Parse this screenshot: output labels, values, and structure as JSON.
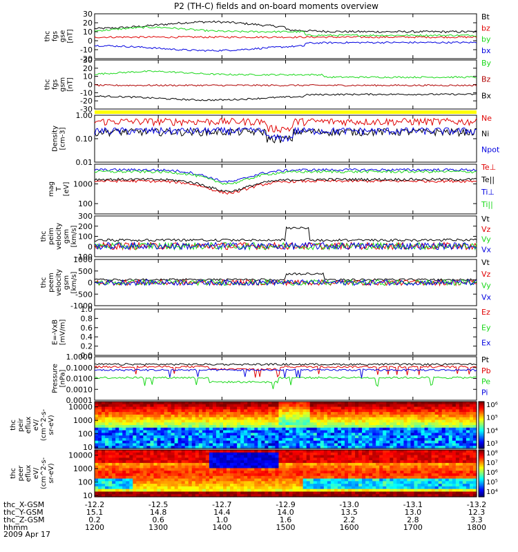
{
  "title": "P2 (TH-C) fields and on-board moments overview",
  "colors": {
    "black": "#000000",
    "red": "#e00000",
    "green": "#18d818",
    "blue": "#0000e0",
    "darkred": "#b00000",
    "yellow": "#ffff00"
  },
  "chart_data": {
    "type": "line",
    "xaxis": {
      "rows": [
        {
          "label": "thc_X-GSM",
          "ticks": [
            "-12.2",
            "-12.5",
            "-12.7",
            "-12.9",
            "-13.0",
            "-13.1",
            "-13.2"
          ]
        },
        {
          "label": "thc_Y-GSM",
          "ticks": [
            "15.1",
            "14.8",
            "14.4",
            "14.0",
            "13.5",
            "13.0",
            "12.3"
          ]
        },
        {
          "label": "thc_Z-GSM",
          "ticks": [
            "0.2",
            "0.6",
            "1.0",
            "1.6",
            "2.2",
            "2.8",
            "3.3"
          ]
        },
        {
          "label": "hhmm",
          "ticks": [
            "1200",
            "1300",
            "1400",
            "1500",
            "1600",
            "1700",
            "1800"
          ]
        }
      ],
      "date": "2009 Apr 17",
      "xlim": [
        1200,
        1800
      ]
    },
    "panels": [
      {
        "id": "fgs-gse",
        "ylabel": [
          "thc",
          "fgs",
          "gse",
          "[nT]"
        ],
        "ylim": [
          -20,
          30
        ],
        "yscale": "linear",
        "yticks": [
          "-20",
          "-10",
          "0",
          "10",
          "20",
          "30"
        ],
        "series": [
          {
            "name": "Bt",
            "color": "black",
            "base": 13
          },
          {
            "name": "bz",
            "color": "red",
            "base": 4
          },
          {
            "name": "by",
            "color": "green",
            "base": 10
          },
          {
            "name": "bx",
            "color": "blue",
            "base": -5
          }
        ]
      },
      {
        "id": "fgs-gsm",
        "ylabel": [
          "thc",
          "fgs",
          "gsm",
          "[nT]"
        ],
        "ylim": [
          -30,
          30
        ],
        "yscale": "linear",
        "yticks": [
          "-30",
          "-20",
          "-10",
          "0",
          "10",
          "20",
          "30"
        ],
        "series": [
          {
            "name": "By",
            "color": "green",
            "base": 12
          },
          {
            "name": "Bz",
            "color": "darkred",
            "base": -1
          },
          {
            "name": "Bx",
            "color": "black",
            "base": -14
          }
        ]
      },
      {
        "id": "density",
        "ylabel": [
          "Density",
          "[cm-3]"
        ],
        "ylim": [
          0.01,
          1.0
        ],
        "yscale": "log",
        "yticks": [
          "0.01",
          "0.10",
          "1.00"
        ],
        "series": [
          {
            "name": "Ne",
            "color": "red",
            "base": 0.55
          },
          {
            "name": "Ni",
            "color": "black",
            "base": 0.2
          },
          {
            "name": "Npot",
            "color": "blue",
            "base": 0.22
          }
        ]
      },
      {
        "id": "temperature",
        "ylabel": [
          "mag",
          "T",
          "[eV]"
        ],
        "ylim": [
          30,
          10000
        ],
        "yscale": "log",
        "yticks": [
          "100",
          "1000"
        ],
        "series": [
          {
            "name": "Te⊥",
            "color": "red",
            "base": 1400
          },
          {
            "name": "Te||",
            "color": "black",
            "base": 1700
          },
          {
            "name": "Ti⊥",
            "color": "blue",
            "base": 5200
          },
          {
            "name": "Ti||",
            "color": "green",
            "base": 4200
          }
        ]
      },
      {
        "id": "peim-velocity",
        "ylabel": [
          "thc",
          "peim",
          "velocity",
          "gsm",
          "[km/s]"
        ],
        "ylim": [
          -100,
          300
        ],
        "yscale": "linear",
        "yticks": [
          "-100",
          "0",
          "100",
          "200",
          "300"
        ],
        "series": [
          {
            "name": "Vt",
            "color": "black",
            "base": 50
          },
          {
            "name": "Vz",
            "color": "red",
            "base": 5
          },
          {
            "name": "Vy",
            "color": "green",
            "base": 5
          },
          {
            "name": "Vx",
            "color": "blue",
            "base": 5
          }
        ]
      },
      {
        "id": "peem-velocity",
        "ylabel": [
          "thc",
          "peem",
          "velocity",
          "gsm",
          "[km/s]"
        ],
        "ylim": [
          -1000,
          1000
        ],
        "yscale": "linear",
        "yticks": [
          "-1000",
          "-500",
          "0",
          "500",
          "1000"
        ],
        "series": [
          {
            "name": "Vt",
            "color": "black",
            "base": 80
          },
          {
            "name": "Vz",
            "color": "red",
            "base": 0
          },
          {
            "name": "Vy",
            "color": "green",
            "base": 0
          },
          {
            "name": "Vx",
            "color": "blue",
            "base": 0
          }
        ]
      },
      {
        "id": "efield",
        "ylabel": [
          "E=-VxB",
          "[mV/m]"
        ],
        "ylim": [
          0,
          1.0
        ],
        "yscale": "linear",
        "yticks": [
          "0.0",
          "0.2",
          "0.4",
          "0.6",
          "0.8",
          "1.0"
        ],
        "series": [
          {
            "name": "Ez",
            "color": "red",
            "base": null
          },
          {
            "name": "Ey",
            "color": "green",
            "base": null
          },
          {
            "name": "Ex",
            "color": "blue",
            "base": null
          }
        ]
      },
      {
        "id": "pressure",
        "ylabel": [
          "Pressure",
          "[nPa]"
        ],
        "ylim": [
          0.0001,
          1.0
        ],
        "yscale": "log",
        "yticks": [
          "0.0001",
          "0.0010",
          "0.0100",
          "0.1000",
          "1.0000"
        ],
        "series": [
          {
            "name": "Pt",
            "color": "black",
            "base": 0.2
          },
          {
            "name": "Pb",
            "color": "red",
            "base": 0.12
          },
          {
            "name": "Pe",
            "color": "green",
            "base": 0.012
          },
          {
            "name": "Pi",
            "color": "blue",
            "base": 0.06
          }
        ]
      }
    ],
    "spectrograms": [
      {
        "id": "peir-eflux",
        "ylabel": [
          "thc",
          "peir",
          "eflux",
          "eV/",
          "(cm^2-s-",
          "sr-eV)"
        ],
        "yticks": [
          "10",
          "100",
          "1000",
          "10000"
        ],
        "ylim": [
          8,
          25000
        ],
        "colorbar_labels": [
          "10³",
          "10⁴",
          "10⁵",
          "10⁶"
        ]
      },
      {
        "id": "peer-eflux",
        "ylabel": [
          "thc",
          "peer",
          "eflux",
          "eV/",
          "(cm^2-s-",
          "sr-eV)"
        ],
        "yticks": [
          "10",
          "100",
          "1000",
          "10000"
        ],
        "ylim": [
          8,
          25000
        ],
        "colorbar_labels": [
          "10⁴",
          "10⁵",
          "10⁶",
          "10⁷",
          "10⁸"
        ]
      }
    ]
  }
}
